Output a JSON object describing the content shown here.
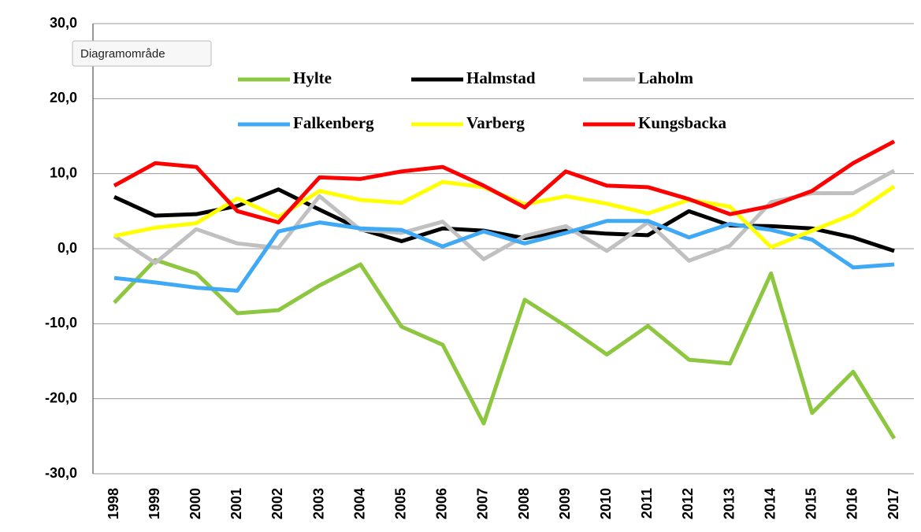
{
  "chart_data": {
    "type": "line",
    "tooltip": "Diagramområde",
    "categories": [
      "1998",
      "1999",
      "2000",
      "2001",
      "2002",
      "2003",
      "2004",
      "2005",
      "2006",
      "2007",
      "2008",
      "2009",
      "2010",
      "2011",
      "2012",
      "2013",
      "2014",
      "2015",
      "2016",
      "2017"
    ],
    "series": [
      {
        "name": "Hylte",
        "color": "#8dc63f",
        "values": [
          -7.2,
          -1.5,
          -3.3,
          -8.6,
          -8.2,
          -4.9,
          -2.1,
          -10.4,
          -12.8,
          -23.3,
          -6.8,
          -10.3,
          -14.1,
          -10.3,
          -14.8,
          -15.3,
          -3.3,
          -21.9,
          -16.4,
          -25.3
        ]
      },
      {
        "name": "Halmstad",
        "color": "#000000",
        "values": [
          6.9,
          4.4,
          4.6,
          5.7,
          7.9,
          5.2,
          2.6,
          1.0,
          2.7,
          2.4,
          1.4,
          2.4,
          2.0,
          1.8,
          5.0,
          3.1,
          3.0,
          2.7,
          1.5,
          -0.3
        ]
      },
      {
        "name": "Laholm",
        "color": "#c0c0c0",
        "values": [
          1.7,
          -1.9,
          2.6,
          0.7,
          0.1,
          7.0,
          2.5,
          2.1,
          3.6,
          -1.4,
          1.7,
          3.0,
          -0.3,
          3.5,
          -1.6,
          0.4,
          6.2,
          7.4,
          7.4,
          10.4
        ]
      },
      {
        "name": "Falkenberg",
        "color": "#3fa9f5",
        "values": [
          -3.9,
          -4.5,
          -5.2,
          -5.6,
          2.3,
          3.5,
          2.7,
          2.5,
          0.3,
          2.3,
          0.7,
          2.1,
          3.7,
          3.7,
          1.5,
          3.3,
          2.5,
          1.2,
          -2.5,
          -2.1
        ]
      },
      {
        "name": "Varberg",
        "color": "#ffff00",
        "values": [
          1.7,
          2.8,
          3.4,
          6.7,
          4.2,
          7.7,
          6.5,
          6.1,
          8.9,
          8.2,
          5.9,
          7.0,
          6.0,
          4.7,
          6.5,
          5.6,
          0.2,
          2.4,
          4.6,
          8.3
        ]
      },
      {
        "name": "Kungsbacka",
        "color": "#ff0000",
        "values": [
          8.4,
          11.4,
          10.9,
          5.0,
          3.5,
          9.5,
          9.3,
          10.3,
          10.9,
          8.4,
          5.5,
          10.3,
          8.4,
          8.2,
          6.6,
          4.6,
          5.7,
          7.7,
          11.4,
          14.3
        ]
      }
    ],
    "ylim": [
      -30,
      30
    ],
    "yticks": [
      {
        "value": -30,
        "label": "-30,0"
      },
      {
        "value": -20,
        "label": "-20,0"
      },
      {
        "value": -10,
        "label": "-10,0"
      },
      {
        "value": 0,
        "label": "0,0"
      },
      {
        "value": 10,
        "label": "10,0"
      },
      {
        "value": 20,
        "label": "20,0"
      },
      {
        "value": 30,
        "label": "30,0"
      }
    ],
    "grid": true
  }
}
